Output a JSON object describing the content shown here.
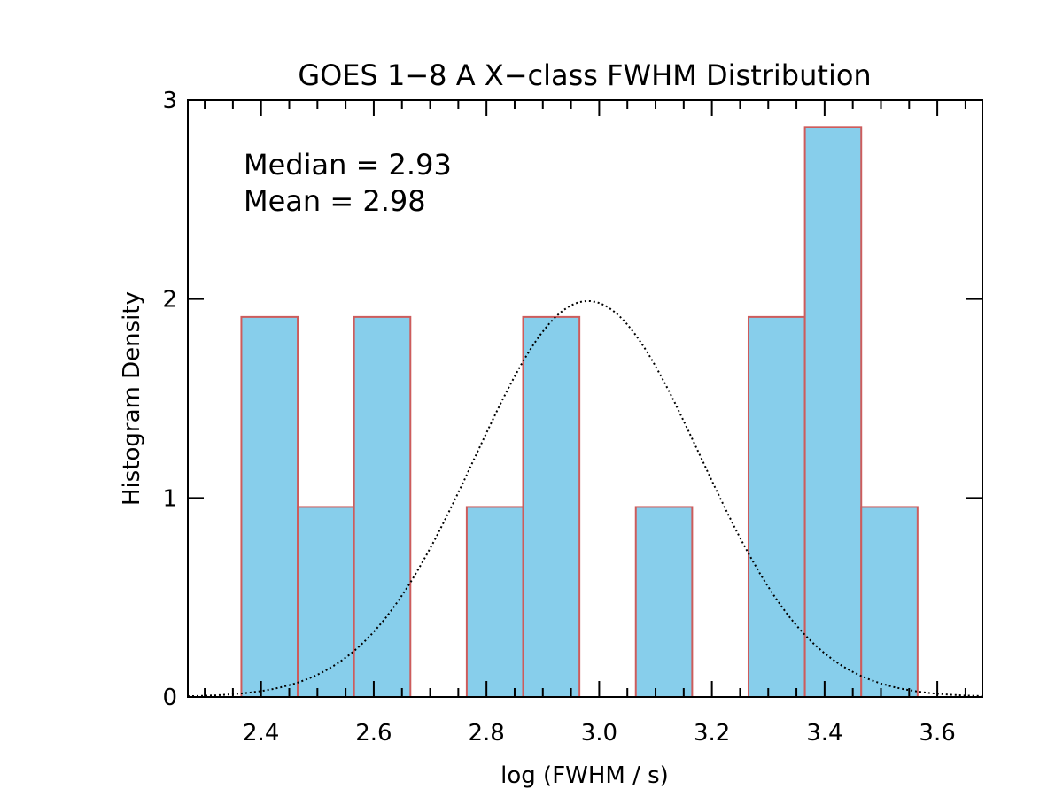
{
  "chart_data": {
    "type": "bar",
    "title": "GOES 1−8 A X−class FWHM Distribution",
    "xlabel": "log (FWHM / s)",
    "ylabel": "Histogram Density",
    "xlim": [
      2.27,
      3.68
    ],
    "ylim": [
      0,
      3
    ],
    "xticks": [
      2.4,
      2.6,
      2.8,
      3.0,
      3.2,
      3.4,
      3.6
    ],
    "xtick_labels": [
      "2.4",
      "2.6",
      "2.8",
      "3.0",
      "3.2",
      "3.4",
      "3.6"
    ],
    "yticks": [
      0,
      1,
      2,
      3
    ],
    "ytick_labels": [
      "0",
      "1",
      "2",
      "3"
    ],
    "bin_width": 0.1,
    "bins": [
      {
        "left": 2.365,
        "value": 1.91
      },
      {
        "left": 2.465,
        "value": 0.955
      },
      {
        "left": 2.565,
        "value": 1.91
      },
      {
        "left": 2.665,
        "value": 0
      },
      {
        "left": 2.765,
        "value": 0.955
      },
      {
        "left": 2.865,
        "value": 1.91
      },
      {
        "left": 2.965,
        "value": 0
      },
      {
        "left": 3.065,
        "value": 0.955
      },
      {
        "left": 3.165,
        "value": 0
      },
      {
        "left": 3.265,
        "value": 1.91
      },
      {
        "left": 3.365,
        "value": 2.865
      },
      {
        "left": 3.465,
        "value": 0.955
      }
    ],
    "fit_curve": {
      "style": "dotted",
      "mean": 2.98,
      "sigma": 0.2,
      "peak": 1.99
    },
    "annotations": [
      "Median = 2.93",
      "Mean = 2.98"
    ],
    "bar_fill": "#87CEEB",
    "bar_edge": "#CD5C5C",
    "grid": false,
    "legend": "none"
  }
}
